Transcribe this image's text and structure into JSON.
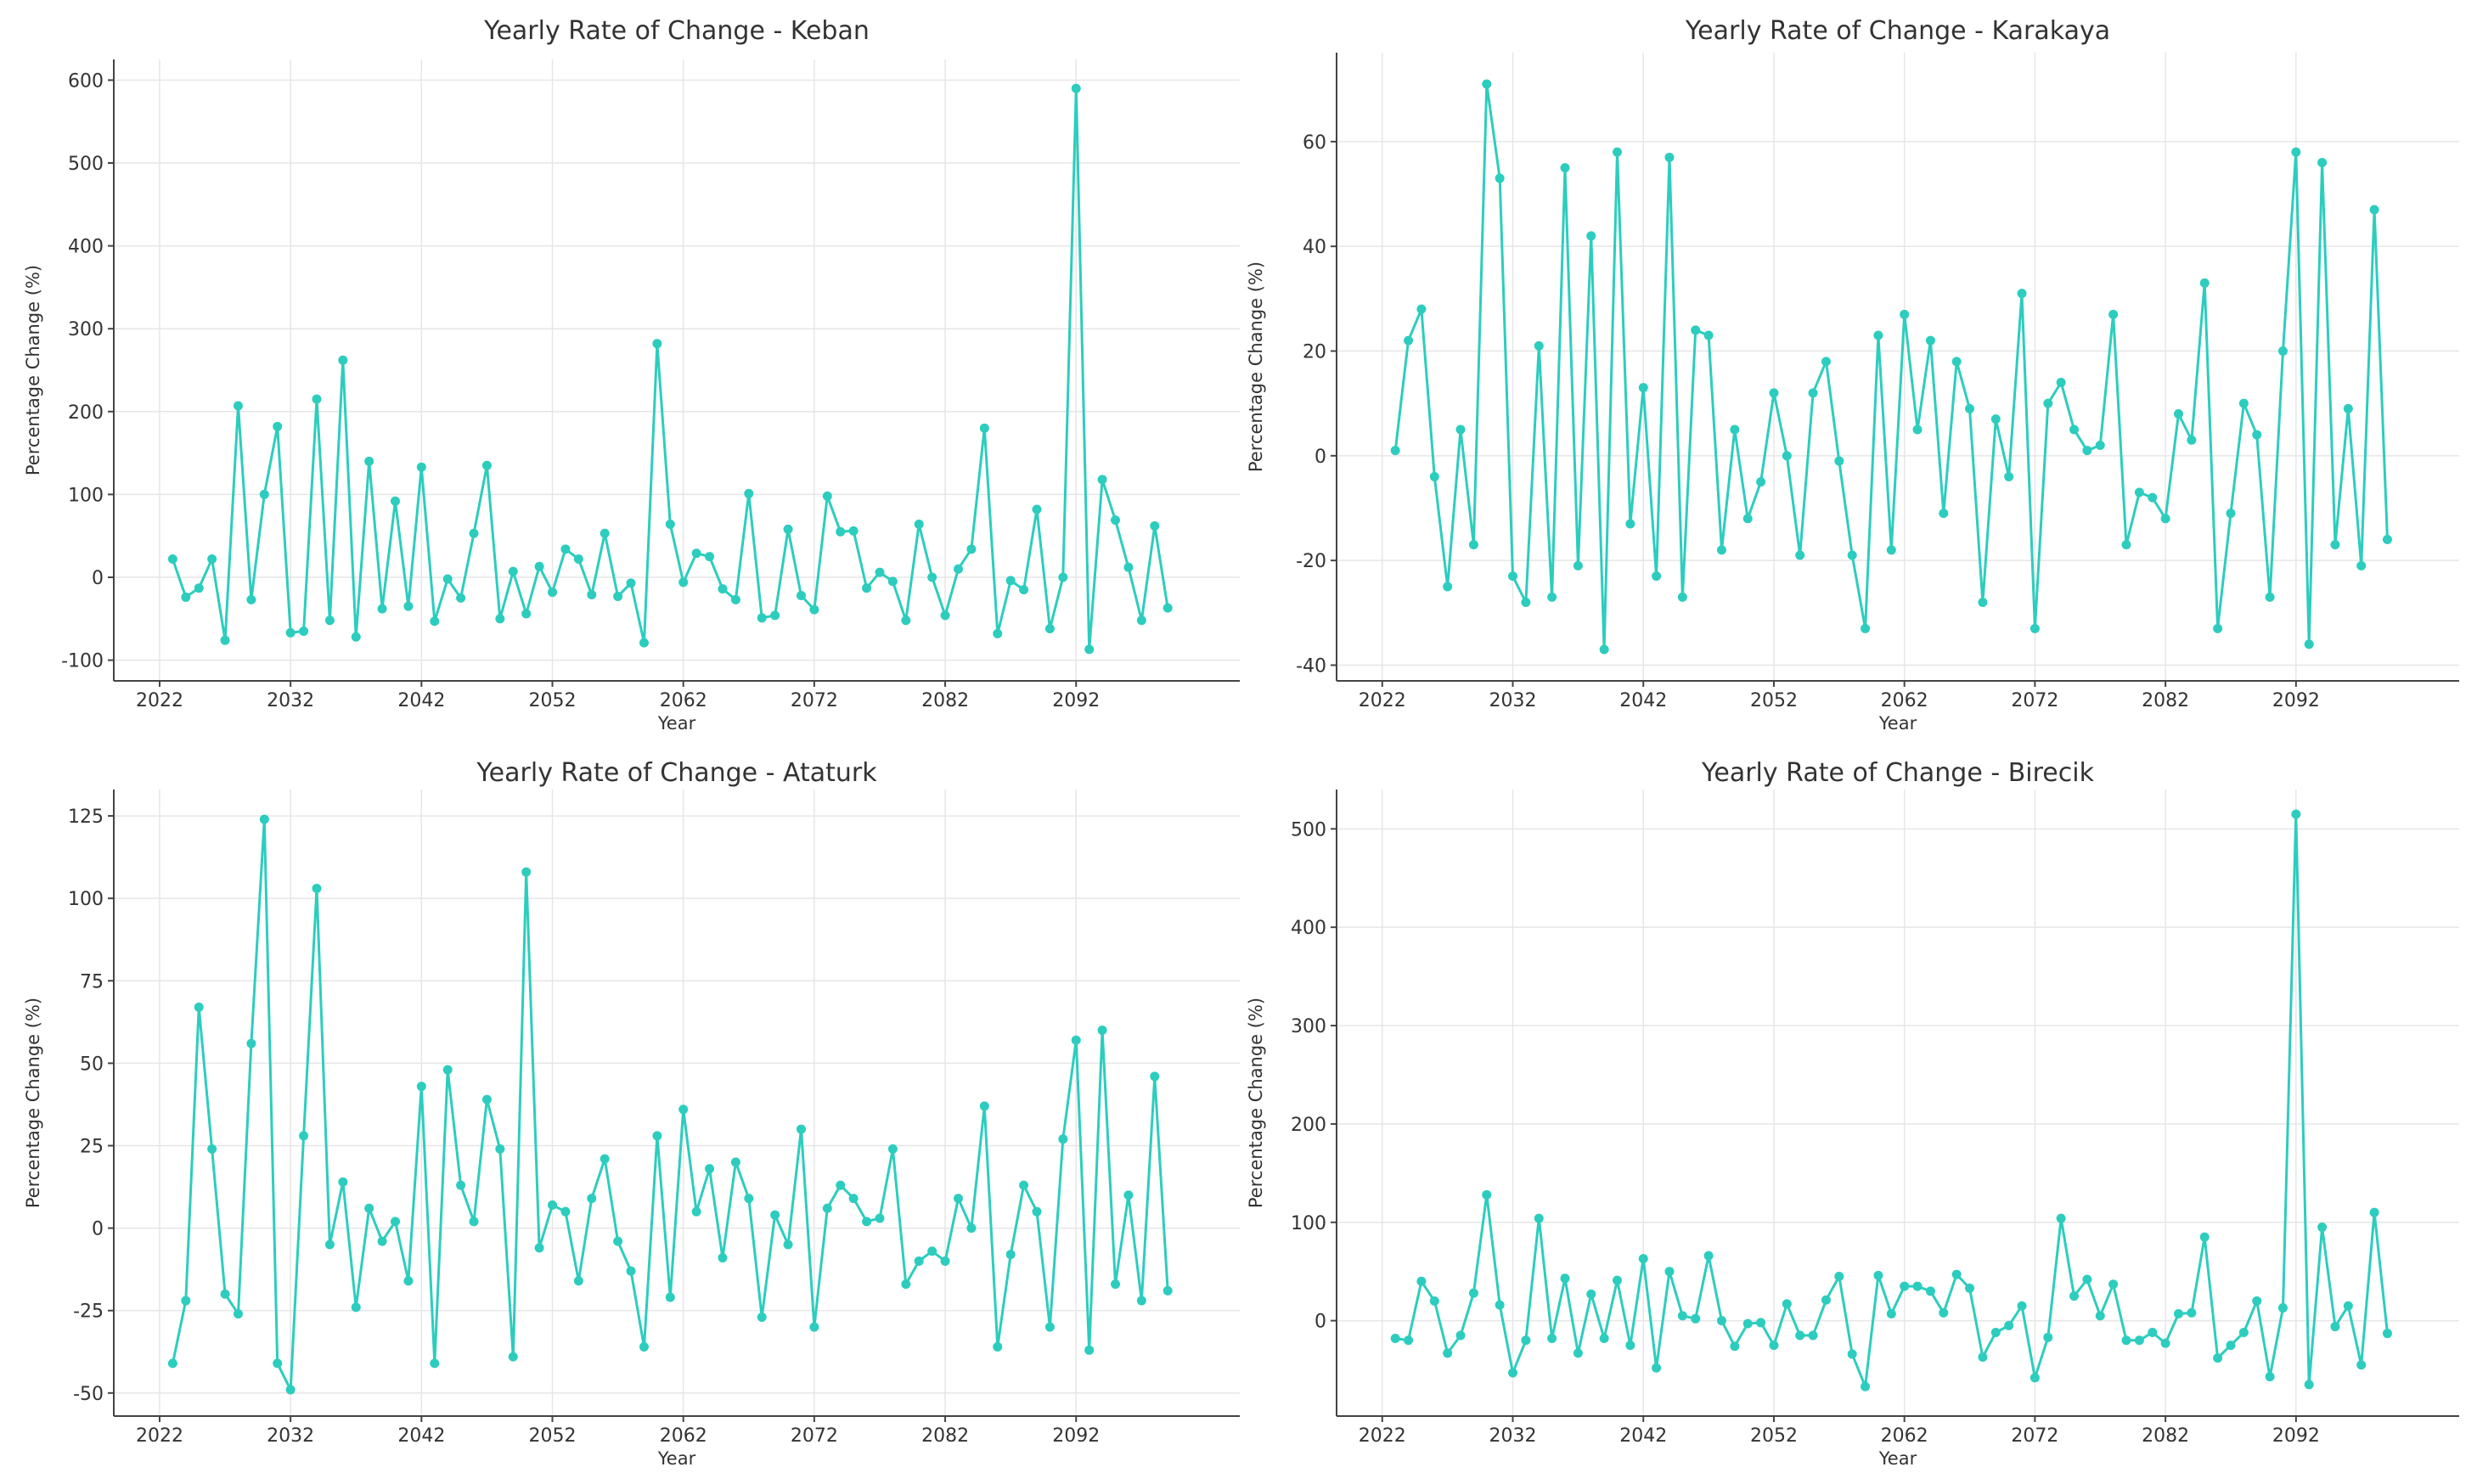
{
  "colors": {
    "series": "#2ccdbe",
    "axis": "#444444",
    "grid": "#e6e6e6",
    "text": "#333333"
  },
  "chart_data": [
    {
      "type": "line",
      "title": "Yearly Rate of Change - Keban",
      "xlabel": "Year",
      "ylabel": "Percentage Change (%)",
      "xlim": [
        2018.5,
        2104.5
      ],
      "ylim": [
        -125,
        625
      ],
      "xticks": [
        2022,
        2032,
        2042,
        2052,
        2062,
        2072,
        2082,
        2092
      ],
      "yticks": [
        -100,
        0,
        100,
        200,
        300,
        400,
        500,
        600
      ],
      "x_start": 2023,
      "values": [
        22,
        -24,
        -13,
        22,
        -76,
        207,
        -27,
        100,
        182,
        -67,
        -65,
        215,
        -52,
        262,
        -72,
        140,
        -38,
        92,
        -35,
        133,
        -53,
        -2,
        -25,
        53,
        135,
        -50,
        7,
        -44,
        13,
        -18,
        34,
        22,
        -21,
        53,
        -23,
        -7,
        -79,
        282,
        64,
        -6,
        29,
        25,
        -14,
        -27,
        101,
        -49,
        -46,
        58,
        -22,
        -39,
        98,
        55,
        56,
        -13,
        6,
        -5,
        -52,
        64,
        0,
        -46,
        10,
        34,
        180,
        -68,
        -4,
        -15,
        82,
        -62,
        0,
        590,
        -87,
        118,
        69,
        12,
        -52,
        62,
        -37
      ]
    },
    {
      "type": "line",
      "title": "Yearly Rate of Change - Karakaya",
      "xlabel": "Year",
      "ylabel": "Percentage Change (%)",
      "xlim": [
        2018.5,
        2104.5
      ],
      "ylim": [
        -43,
        77
      ],
      "xticks": [
        2022,
        2032,
        2042,
        2052,
        2062,
        2072,
        2082,
        2092
      ],
      "yticks": [
        -40,
        -20,
        0,
        20,
        40,
        60
      ],
      "x_start": 2023,
      "values": [
        1,
        22,
        28,
        -4,
        -25,
        5,
        -17,
        71,
        53,
        -23,
        -28,
        21,
        -27,
        55,
        -21,
        42,
        -37,
        58,
        -13,
        13,
        -23,
        57,
        -27,
        24,
        23,
        -18,
        5,
        -12,
        -5,
        12,
        0,
        -19,
        12,
        18,
        -1,
        -19,
        -33,
        23,
        -18,
        27,
        5,
        22,
        -11,
        18,
        9,
        -28,
        7,
        -4,
        31,
        -33,
        10,
        14,
        5,
        1,
        2,
        27,
        -17,
        -7,
        -8,
        -12,
        8,
        3,
        33,
        -33,
        -11,
        10,
        4,
        -27,
        20,
        58,
        -36,
        56,
        -17,
        9,
        -21,
        47,
        -16
      ]
    },
    {
      "type": "line",
      "title": "Yearly Rate of Change - Ataturk",
      "xlabel": "Year",
      "ylabel": "Percentage Change (%)",
      "xlim": [
        2018.5,
        2104.5
      ],
      "ylim": [
        -57,
        133
      ],
      "xticks": [
        2022,
        2032,
        2042,
        2052,
        2062,
        2072,
        2082,
        2092
      ],
      "yticks": [
        -50,
        -25,
        0,
        25,
        50,
        75,
        100,
        125
      ],
      "x_start": 2023,
      "values": [
        -41,
        -22,
        67,
        24,
        -20,
        -26,
        56,
        124,
        -41,
        -49,
        28,
        103,
        -5,
        14,
        -24,
        6,
        -4,
        2,
        -16,
        43,
        -41,
        48,
        13,
        2,
        39,
        24,
        -39,
        108,
        -6,
        7,
        5,
        -16,
        9,
        21,
        -4,
        -13,
        -36,
        28,
        -21,
        36,
        5,
        18,
        -9,
        20,
        9,
        -27,
        4,
        -5,
        30,
        -30,
        6,
        13,
        9,
        2,
        3,
        24,
        -17,
        -10,
        -7,
        -10,
        9,
        0,
        37,
        -36,
        -8,
        13,
        5,
        -30,
        27,
        57,
        -37,
        60,
        -17,
        10,
        -22,
        46,
        -19
      ]
    },
    {
      "type": "line",
      "title": "Yearly Rate of Change - Birecik",
      "xlabel": "Year",
      "ylabel": "Percentage Change (%)",
      "xlim": [
        2018.5,
        2104.5
      ],
      "ylim": [
        -97,
        540
      ],
      "xticks": [
        2022,
        2032,
        2042,
        2052,
        2062,
        2072,
        2082,
        2092
      ],
      "yticks": [
        0,
        100,
        200,
        300,
        400,
        500
      ],
      "x_start": 2023,
      "values": [
        -18,
        -20,
        40,
        20,
        -33,
        -15,
        28,
        128,
        16,
        -53,
        -20,
        104,
        -18,
        43,
        -33,
        27,
        -18,
        41,
        -25,
        63,
        -48,
        50,
        5,
        2,
        66,
        0,
        -26,
        -3,
        -2,
        -25,
        17,
        -15,
        -15,
        21,
        45,
        -34,
        -67,
        46,
        7,
        35,
        35,
        30,
        8,
        47,
        33,
        -37,
        -12,
        -5,
        15,
        -58,
        -17,
        104,
        25,
        42,
        5,
        37,
        -20,
        -20,
        -12,
        -23,
        7,
        8,
        85,
        -38,
        -25,
        -12,
        20,
        -57,
        13,
        515,
        -65,
        95,
        -6,
        15,
        -45,
        110,
        -13
      ]
    }
  ]
}
